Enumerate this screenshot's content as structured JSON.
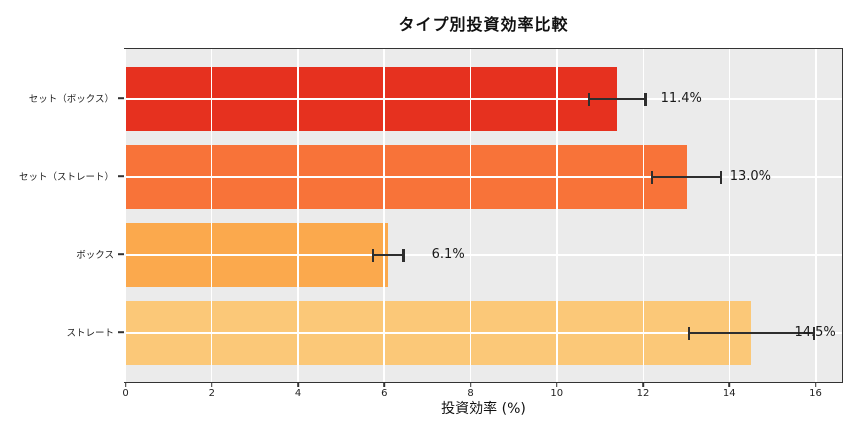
{
  "chart_data": {
    "type": "bar",
    "orientation": "horizontal",
    "title": "タイプ別投資効率比較",
    "xlabel": "投資効率 (%)",
    "categories": [
      "セット（ボックス）",
      "セット（ストレート）",
      "ボックス",
      "ストレート"
    ],
    "values": [
      11.4,
      13.0,
      6.1,
      14.5
    ],
    "errors": [
      0.65,
      0.8,
      0.35,
      1.45
    ],
    "value_labels": [
      "11.4%",
      "13.0%",
      "6.1%",
      "14.5%"
    ],
    "bar_colors": [
      "#e6311f",
      "#f87339",
      "#fba94d",
      "#fbc878"
    ],
    "xticks": [
      0,
      2,
      4,
      6,
      8,
      10,
      12,
      14,
      16
    ],
    "xlim": [
      0,
      16.6
    ],
    "grid": true,
    "legend": false,
    "plot_background": "#ebebeb",
    "grid_color": "#ffffff",
    "error_bar_color": "#2e2e2e",
    "text_color": "#1a1a1a"
  },
  "layout_note": "horizontal bar chart, gray panel, white gridlines over bars, dark error bars with caps"
}
